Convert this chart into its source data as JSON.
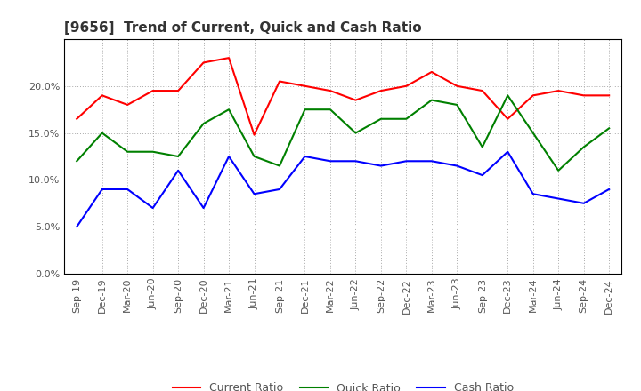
{
  "title": "[9656]  Trend of Current, Quick and Cash Ratio",
  "x_labels": [
    "Sep-19",
    "Dec-19",
    "Mar-20",
    "Jun-20",
    "Sep-20",
    "Dec-20",
    "Mar-21",
    "Jun-21",
    "Sep-21",
    "Dec-21",
    "Mar-22",
    "Jun-22",
    "Sep-22",
    "Dec-22",
    "Mar-23",
    "Jun-23",
    "Sep-23",
    "Dec-23",
    "Mar-24",
    "Jun-24",
    "Sep-24",
    "Dec-24"
  ],
  "current_ratio": [
    16.5,
    19.0,
    18.0,
    19.5,
    19.5,
    22.5,
    23.0,
    14.8,
    20.5,
    20.0,
    19.5,
    18.5,
    19.5,
    20.0,
    21.5,
    20.0,
    19.5,
    16.5,
    19.0,
    19.5,
    19.0,
    19.0
  ],
  "quick_ratio": [
    12.0,
    15.0,
    13.0,
    13.0,
    12.5,
    16.0,
    17.5,
    12.5,
    11.5,
    17.5,
    17.5,
    15.0,
    16.5,
    16.5,
    18.5,
    18.0,
    13.5,
    19.0,
    15.0,
    11.0,
    13.5,
    15.5
  ],
  "cash_ratio": [
    5.0,
    9.0,
    9.0,
    7.0,
    11.0,
    7.0,
    12.5,
    8.5,
    9.0,
    12.5,
    12.0,
    12.0,
    11.5,
    12.0,
    12.0,
    11.5,
    10.5,
    13.0,
    8.5,
    8.0,
    7.5,
    9.0
  ],
  "current_color": "#FF0000",
  "quick_color": "#008000",
  "cash_color": "#0000FF",
  "ylim": [
    0.0,
    25.0
  ],
  "yticks": [
    0.0,
    5.0,
    10.0,
    15.0,
    20.0
  ],
  "background_color": "#ffffff",
  "grid_color": "#aaaaaa",
  "title_fontsize": 11,
  "tick_fontsize": 8,
  "legend_fontsize": 9
}
